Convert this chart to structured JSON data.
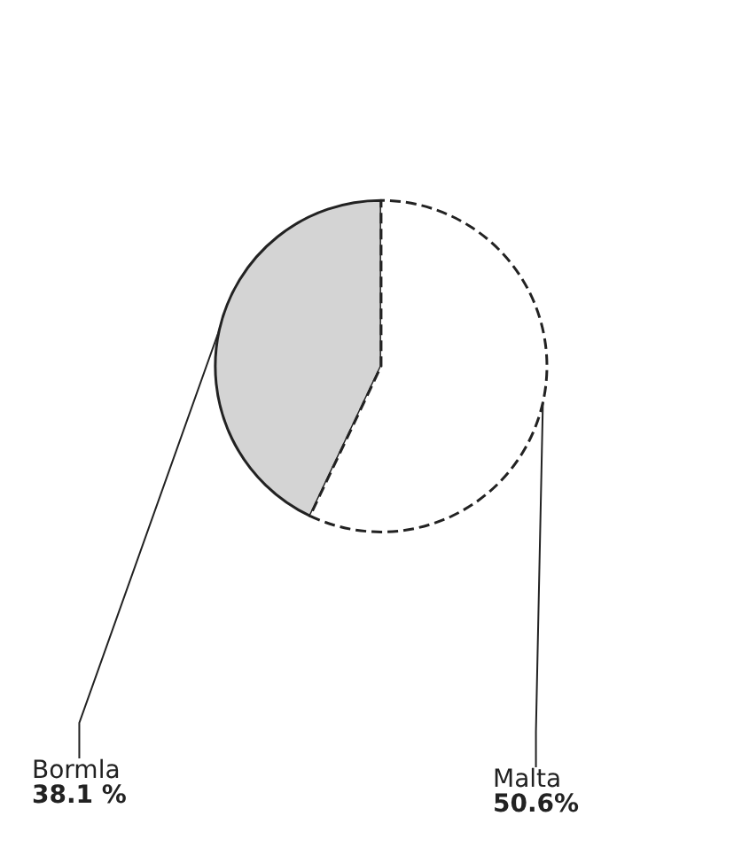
{
  "chart_data": {
    "type": "pie",
    "categories": [
      "Bormla",
      "Malta"
    ],
    "values": [
      38.1,
      50.6
    ],
    "value_labels": [
      "38.1 %",
      "50.6%"
    ],
    "colors": [
      "#d4d4d4",
      "#ffffff"
    ],
    "legend": false
  }
}
